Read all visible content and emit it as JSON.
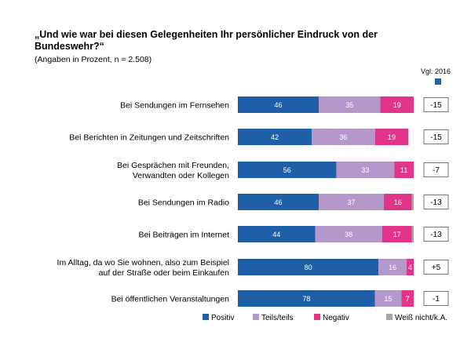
{
  "title": "„Und wie war bei diesen Gelegenheiten Ihr persönlicher Eindruck von der Bundeswehr?“",
  "subtitle": "(Angaben in Prozent, n = 2.508)",
  "comparison_header": "Vgl. 2016",
  "colors": {
    "positiv": "#1f5fa8",
    "teils": "#b497cb",
    "negativ": "#e2358a",
    "weiss": "#a6a6a6"
  },
  "chart_data": {
    "type": "bar",
    "orientation": "horizontal",
    "stacked": true,
    "title": "„Und wie war bei diesen Gelegenheiten Ihr persönlicher Eindruck von der Bundeswehr?“",
    "subtitle": "(Angaben in Prozent, n = 2.508)",
    "categories": [
      [
        "Bei Sendungen im Fernsehen"
      ],
      [
        "Bei Berichten in Zeitungen und Zeitschriften"
      ],
      [
        "Bei Gesprächen mit Freunden,",
        "Verwandten oder Kollegen"
      ],
      [
        "Bei Sendungen im Radio"
      ],
      [
        "Bei Beiträgen im Internet"
      ],
      [
        "Im Alltag, da wo Sie wohnen, also zum Beispiel",
        "auf der Straße oder beim Einkaufen"
      ],
      [
        "Bei öffentlichen Veranstaltungen"
      ]
    ],
    "series": [
      {
        "name": "Positiv",
        "color_key": "positiv",
        "values": [
          46,
          42,
          56,
          46,
          44,
          80,
          78
        ],
        "labels": [
          "46",
          "42",
          "56",
          "46",
          "44",
          "80",
          "78"
        ]
      },
      {
        "name": "Teils/teils",
        "color_key": "teils",
        "values": [
          35,
          36,
          33,
          37,
          38,
          16,
          15
        ],
        "labels": [
          "35",
          "36",
          "33",
          "37",
          "38",
          "16",
          "15"
        ]
      },
      {
        "name": "Negativ",
        "color_key": "negativ",
        "values": [
          19,
          19,
          11,
          16,
          17,
          4,
          7
        ],
        "labels": [
          "19",
          "19",
          "11",
          "16",
          "17",
          "4",
          "7"
        ]
      },
      {
        "name": "Weiß nicht/k.A.",
        "color_key": "weiss",
        "values": [
          0,
          0,
          0,
          1,
          1,
          0,
          0
        ],
        "labels": [
          "",
          "",
          "",
          "",
          "",
          "",
          ""
        ]
      }
    ],
    "comparison": {
      "label": "Vgl. 2016",
      "values": [
        "-15",
        "-15",
        "-7",
        "-13",
        "-13",
        "+5",
        "-1"
      ]
    },
    "xlim": [
      0,
      100
    ],
    "grid": false,
    "legend_position": "bottom"
  }
}
